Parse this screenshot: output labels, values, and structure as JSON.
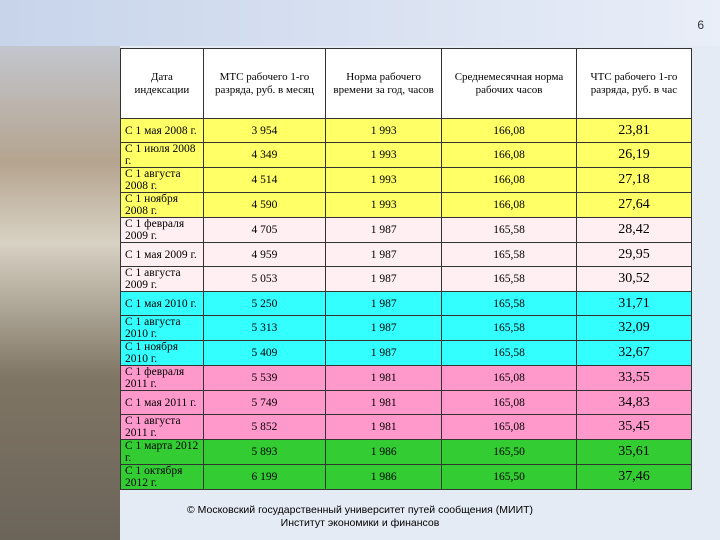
{
  "page_number": "6",
  "table": {
    "header": [
      "Дата индексации",
      "МТС рабочего 1-го разряда, руб. в месяц",
      "Норма рабочего времени за год, часов",
      "Среднемесячная норма рабочих часов",
      "ЧТС рабочего 1-го разряда, руб. в час"
    ],
    "rows": [
      [
        "С 1 мая 2008 г.",
        "3 954",
        "1 993",
        "166,08",
        "23,81"
      ],
      [
        "С 1 июля 2008 г.",
        "4 349",
        "1 993",
        "166,08",
        "26,19"
      ],
      [
        "С 1 августа 2008 г.",
        "4 514",
        "1 993",
        "166,08",
        "27,18"
      ],
      [
        "С 1 ноября 2008 г.",
        "4 590",
        "1 993",
        "166,08",
        "27,64"
      ],
      [
        "С 1 февраля 2009 г.",
        "4 705",
        "1 987",
        "165,58",
        "28,42"
      ],
      [
        "С 1 мая 2009 г.",
        "4 959",
        "1 987",
        "165,58",
        "29,95"
      ],
      [
        "С 1 августа 2009 г.",
        "5 053",
        "1 987",
        "165,58",
        "30,52"
      ],
      [
        "С 1 мая 2010 г.",
        "5 250",
        "1 987",
        "165,58",
        "31,71"
      ],
      [
        "С 1 августа 2010 г.",
        "5 313",
        "1 987",
        "165,58",
        "32,09"
      ],
      [
        "С 1 ноября 2010 г.",
        "5 409",
        "1 987",
        "165,58",
        "32,67"
      ],
      [
        "С 1 февраля 2011 г.",
        "5 539",
        "1 981",
        "165,08",
        "33,55"
      ],
      [
        "С 1 мая 2011 г.",
        "5 749",
        "1 981",
        "165,08",
        "34,83"
      ],
      [
        "С 1 августа 2011 г.",
        "5 852",
        "1 981",
        "165,08",
        "35,45"
      ],
      [
        "С 1 марта 2012 г.",
        "5 893",
        "1 986",
        "165,50",
        "35,61"
      ],
      [
        "С 1 октября 2012 г.",
        "6 199",
        "1 986",
        "165,50",
        "37,46"
      ]
    ],
    "row_colors": [
      "#ffff66",
      "#ffff66",
      "#ffff66",
      "#ffff66",
      "#ffeef2",
      "#ffeef2",
      "#ffeef2",
      "#33ffff",
      "#33ffff",
      "#33ffff",
      "#ff99cc",
      "#ff99cc",
      "#ff99cc",
      "#33cc33",
      "#33cc33"
    ]
  },
  "footer": [
    "© Московский государственный университет путей сообщения (МИИТ)",
    "Институт экономики и финансов"
  ]
}
